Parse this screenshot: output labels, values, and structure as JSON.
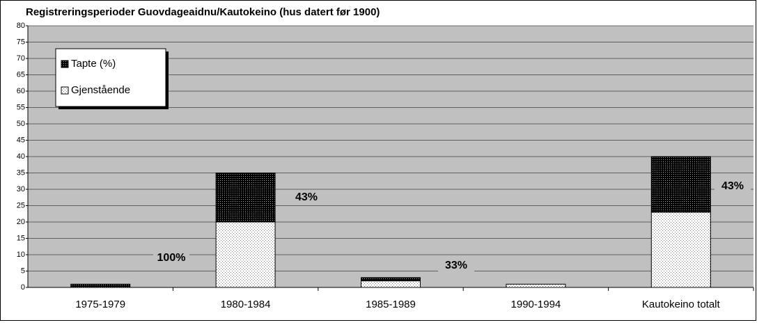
{
  "chart_data": {
    "type": "bar",
    "stacked": true,
    "title": "Registreringsperioder Guovdageaidnu/Kautokeino (hus datert før 1900)",
    "categories": [
      "1975-1979",
      "1980-1984",
      "1985-1989",
      "1990-1994",
      "Kautokeino totalt"
    ],
    "series": [
      {
        "name": "Gjenstående",
        "color": "#ffffff",
        "values": [
          0,
          20,
          2,
          1,
          23
        ]
      },
      {
        "name": "Tapte (%)",
        "color": "#000000",
        "values": [
          1,
          15,
          1,
          0,
          17
        ]
      }
    ],
    "annotations": [
      "100%",
      "43%",
      "33%",
      "43%"
    ],
    "ylim": [
      0,
      80
    ],
    "yticks": [
      0,
      5,
      10,
      15,
      20,
      25,
      30,
      35,
      40,
      45,
      50,
      55,
      60,
      65,
      70,
      75,
      80
    ],
    "grid": true,
    "legend": "upper left"
  }
}
